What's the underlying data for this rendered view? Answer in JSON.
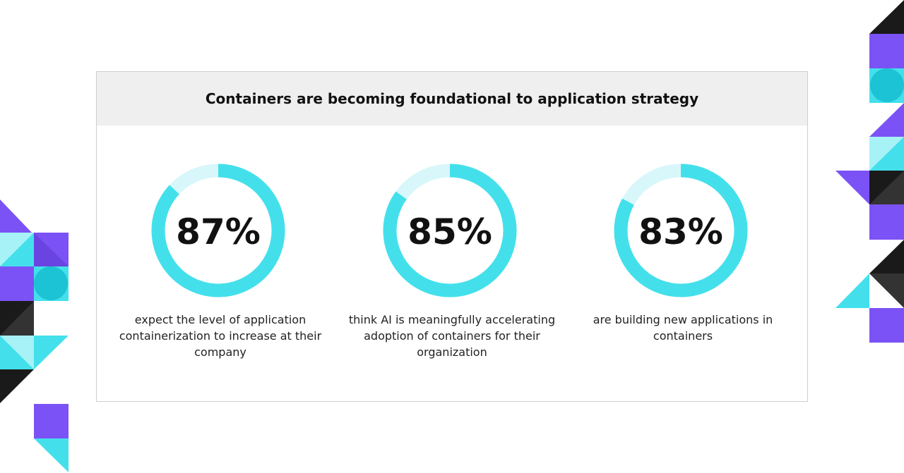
{
  "header": {
    "title": "Containers are becoming foundational to application strategy"
  },
  "chart_data": [
    {
      "type": "donut",
      "values": [
        87,
        13
      ],
      "value_labels": [
        "87%",
        null
      ],
      "colors": [
        "#43e0ec",
        "#d8f7fa"
      ],
      "caption": "expect the level of application containerization to increase at their company"
    },
    {
      "type": "donut",
      "values": [
        85,
        15
      ],
      "value_labels": [
        "85%",
        null
      ],
      "colors": [
        "#43e0ec",
        "#d8f7fa"
      ],
      "caption": "think AI is meaningfully accelerating adoption of containers for their organization"
    },
    {
      "type": "donut",
      "values": [
        83,
        17
      ],
      "value_labels": [
        "83%",
        null
      ],
      "colors": [
        "#43e0ec",
        "#d8f7fa"
      ],
      "caption": "are building new applications in containers"
    }
  ]
}
